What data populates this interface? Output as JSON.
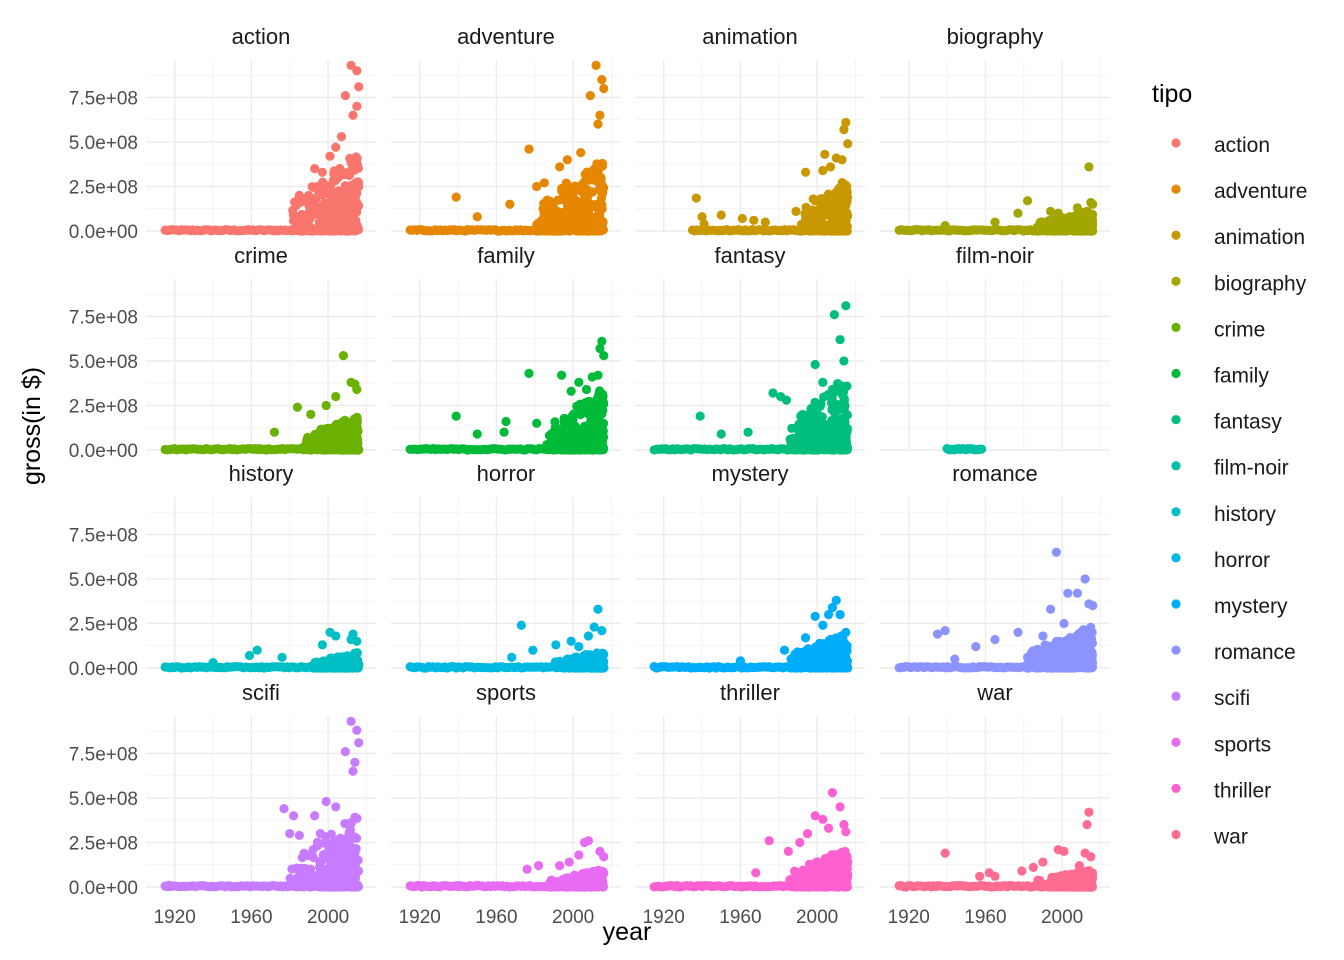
{
  "chart_data": {
    "type": "scatter",
    "facet": "genre",
    "xlabel": "year",
    "ylabel": "gross(in $)",
    "xlim": [
      1905,
      2025
    ],
    "ylim": [
      0,
      960000000
    ],
    "x_ticks": [
      1920,
      1960,
      2000
    ],
    "y_ticks": [
      {
        "value": 0,
        "label": "0.0e+00"
      },
      {
        "value": 250000000,
        "label": "2.5e+08"
      },
      {
        "value": 500000000,
        "label": "5.0e+08"
      },
      {
        "value": 750000000,
        "label": "7.5e+08"
      }
    ],
    "grid": true,
    "legend": {
      "title": "tipo",
      "position": "right"
    },
    "panels": [
      {
        "name": "action",
        "color": "#F8766D",
        "x_range": [
          1915,
          2016
        ],
        "dense_start": 1980,
        "dense_max": 450000000,
        "points": [
          [
            1993,
            350000000
          ],
          [
            1997,
            330000000
          ],
          [
            2001,
            420000000
          ],
          [
            2004,
            470000000
          ],
          [
            2007,
            530000000
          ],
          [
            2009,
            760000000
          ],
          [
            2012,
            930000000
          ],
          [
            2013,
            650000000
          ],
          [
            2015,
            900000000
          ],
          [
            2015,
            700000000
          ],
          [
            2016,
            810000000
          ],
          [
            1985,
            200000000
          ]
        ]
      },
      {
        "name": "adventure",
        "color": "#E58700",
        "x_range": [
          1915,
          2016
        ],
        "dense_start": 1980,
        "dense_max": 420000000,
        "points": [
          [
            1939,
            190000000
          ],
          [
            1950,
            80000000
          ],
          [
            1967,
            150000000
          ],
          [
            1977,
            460000000
          ],
          [
            1981,
            250000000
          ],
          [
            1985,
            270000000
          ],
          [
            1993,
            360000000
          ],
          [
            1997,
            400000000
          ],
          [
            2004,
            440000000
          ],
          [
            2009,
            760000000
          ],
          [
            2012,
            930000000
          ],
          [
            2013,
            600000000
          ],
          [
            2014,
            650000000
          ],
          [
            2015,
            850000000
          ],
          [
            2016,
            800000000
          ]
        ]
      },
      {
        "name": "animation",
        "color": "#C99800",
        "x_range": [
          1935,
          2016
        ],
        "dense_start": 1990,
        "dense_max": 300000000,
        "points": [
          [
            1937,
            185000000
          ],
          [
            1940,
            80000000
          ],
          [
            1941,
            40000000
          ],
          [
            1950,
            90000000
          ],
          [
            1961,
            70000000
          ],
          [
            1967,
            60000000
          ],
          [
            1973,
            50000000
          ],
          [
            1989,
            110000000
          ],
          [
            1994,
            330000000
          ],
          [
            1998,
            180000000
          ],
          [
            2003,
            340000000
          ],
          [
            2004,
            430000000
          ],
          [
            2007,
            360000000
          ],
          [
            2010,
            410000000
          ],
          [
            2013,
            400000000
          ],
          [
            2014,
            570000000
          ],
          [
            2015,
            610000000
          ],
          [
            2016,
            490000000
          ]
        ]
      },
      {
        "name": "biography",
        "color": "#A3A500",
        "x_range": [
          1915,
          2016
        ],
        "dense_start": 1985,
        "dense_max": 120000000,
        "points": [
          [
            1939,
            30000000
          ],
          [
            1965,
            50000000
          ],
          [
            1977,
            100000000
          ],
          [
            1982,
            170000000
          ],
          [
            1994,
            110000000
          ],
          [
            1998,
            100000000
          ],
          [
            2008,
            130000000
          ],
          [
            2014,
            360000000
          ],
          [
            2015,
            160000000
          ],
          [
            2016,
            150000000
          ]
        ]
      },
      {
        "name": "crime",
        "color": "#6BB100",
        "x_range": [
          1915,
          2016
        ],
        "dense_start": 1985,
        "dense_max": 200000000,
        "points": [
          [
            1972,
            100000000
          ],
          [
            1984,
            240000000
          ],
          [
            1991,
            200000000
          ],
          [
            1999,
            250000000
          ],
          [
            2004,
            300000000
          ],
          [
            2008,
            530000000
          ],
          [
            2012,
            380000000
          ],
          [
            2014,
            370000000
          ],
          [
            2015,
            340000000
          ]
        ]
      },
      {
        "name": "family",
        "color": "#00BA38",
        "x_range": [
          1915,
          2016
        ],
        "dense_start": 1985,
        "dense_max": 350000000,
        "points": [
          [
            1939,
            190000000
          ],
          [
            1950,
            90000000
          ],
          [
            1964,
            100000000
          ],
          [
            1965,
            160000000
          ],
          [
            1977,
            430000000
          ],
          [
            1981,
            150000000
          ],
          [
            1994,
            420000000
          ],
          [
            1999,
            330000000
          ],
          [
            2003,
            380000000
          ],
          [
            2007,
            340000000
          ],
          [
            2010,
            410000000
          ],
          [
            2013,
            420000000
          ],
          [
            2014,
            570000000
          ],
          [
            2015,
            610000000
          ],
          [
            2016,
            530000000
          ]
        ]
      },
      {
        "name": "fantasy",
        "color": "#00BF7D",
        "x_range": [
          1915,
          2016
        ],
        "dense_start": 1985,
        "dense_max": 420000000,
        "points": [
          [
            1939,
            190000000
          ],
          [
            1950,
            90000000
          ],
          [
            1964,
            100000000
          ],
          [
            1977,
            320000000
          ],
          [
            1981,
            300000000
          ],
          [
            1984,
            280000000
          ],
          [
            1999,
            480000000
          ],
          [
            2003,
            380000000
          ],
          [
            2009,
            760000000
          ],
          [
            2012,
            620000000
          ],
          [
            2014,
            500000000
          ],
          [
            2015,
            810000000
          ]
        ]
      },
      {
        "name": "film-noir",
        "color": "#00C1A3",
        "x_range": [
          1940,
          1958
        ],
        "dense_start": 1965,
        "dense_max": 0,
        "points": [
          [
            1941,
            4000000
          ],
          [
            1944,
            2000000
          ],
          [
            1946,
            8000000
          ],
          [
            1947,
            4000000
          ],
          [
            1949,
            6000000
          ],
          [
            1950,
            3000000
          ],
          [
            1951,
            5000000
          ],
          [
            1953,
            7000000
          ],
          [
            1955,
            3000000
          ],
          [
            1958,
            5000000
          ]
        ]
      },
      {
        "name": "history",
        "color": "#00BFC4",
        "x_range": [
          1915,
          2016
        ],
        "dense_start": 1990,
        "dense_max": 90000000,
        "points": [
          [
            1940,
            30000000
          ],
          [
            1959,
            70000000
          ],
          [
            1963,
            100000000
          ],
          [
            1976,
            60000000
          ],
          [
            1997,
            130000000
          ],
          [
            2001,
            200000000
          ],
          [
            2004,
            180000000
          ],
          [
            2012,
            160000000
          ],
          [
            2013,
            190000000
          ],
          [
            2015,
            150000000
          ]
        ]
      },
      {
        "name": "horror",
        "color": "#00B9E3",
        "x_range": [
          1915,
          2016
        ],
        "dense_start": 1990,
        "dense_max": 100000000,
        "points": [
          [
            1968,
            60000000
          ],
          [
            1973,
            240000000
          ],
          [
            1979,
            100000000
          ],
          [
            1991,
            130000000
          ],
          [
            1999,
            150000000
          ],
          [
            2003,
            120000000
          ],
          [
            2008,
            180000000
          ],
          [
            2011,
            230000000
          ],
          [
            2013,
            330000000
          ],
          [
            2015,
            210000000
          ]
        ]
      },
      {
        "name": "mystery",
        "color": "#00ADFA",
        "x_range": [
          1915,
          2016
        ],
        "dense_start": 1985,
        "dense_max": 200000000,
        "points": [
          [
            1960,
            40000000
          ],
          [
            1983,
            100000000
          ],
          [
            1994,
            170000000
          ],
          [
            1999,
            290000000
          ],
          [
            2003,
            240000000
          ],
          [
            2006,
            300000000
          ],
          [
            2008,
            340000000
          ],
          [
            2010,
            380000000
          ],
          [
            2012,
            300000000
          ],
          [
            2015,
            200000000
          ]
        ]
      },
      {
        "name": "romance",
        "color": "#8B93FF",
        "x_range": [
          1915,
          2016
        ],
        "dense_start": 1980,
        "dense_max": 240000000,
        "points": [
          [
            1935,
            190000000
          ],
          [
            1939,
            210000000
          ],
          [
            1944,
            50000000
          ],
          [
            1955,
            120000000
          ],
          [
            1965,
            160000000
          ],
          [
            1977,
            200000000
          ],
          [
            1990,
            180000000
          ],
          [
            1994,
            330000000
          ],
          [
            1997,
            650000000
          ],
          [
            2001,
            250000000
          ],
          [
            2003,
            420000000
          ],
          [
            2008,
            420000000
          ],
          [
            2012,
            500000000
          ],
          [
            2014,
            360000000
          ],
          [
            2016,
            350000000
          ]
        ]
      },
      {
        "name": "scifi",
        "color": "#C77CFF",
        "x_range": [
          1915,
          2016
        ],
        "dense_start": 1980,
        "dense_max": 420000000,
        "points": [
          [
            1917,
            10000000
          ],
          [
            1977,
            440000000
          ],
          [
            1980,
            300000000
          ],
          [
            1982,
            400000000
          ],
          [
            1985,
            290000000
          ],
          [
            1993,
            400000000
          ],
          [
            1996,
            300000000
          ],
          [
            1999,
            480000000
          ],
          [
            2004,
            450000000
          ],
          [
            2009,
            760000000
          ],
          [
            2012,
            930000000
          ],
          [
            2013,
            650000000
          ],
          [
            2014,
            700000000
          ],
          [
            2015,
            880000000
          ],
          [
            2016,
            810000000
          ]
        ]
      },
      {
        "name": "sports",
        "color": "#E76BF3",
        "x_range": [
          1915,
          2016
        ],
        "dense_start": 1985,
        "dense_max": 100000000,
        "points": [
          [
            1927,
            5000000
          ],
          [
            1940,
            8000000
          ],
          [
            1950,
            10000000
          ],
          [
            1976,
            100000000
          ],
          [
            1982,
            120000000
          ],
          [
            1993,
            120000000
          ],
          [
            1998,
            140000000
          ],
          [
            2003,
            180000000
          ],
          [
            2006,
            250000000
          ],
          [
            2008,
            260000000
          ],
          [
            2014,
            200000000
          ],
          [
            2016,
            170000000
          ]
        ]
      },
      {
        "name": "thriller",
        "color": "#FD61D1",
        "x_range": [
          1915,
          2016
        ],
        "dense_start": 1985,
        "dense_max": 220000000,
        "points": [
          [
            1968,
            80000000
          ],
          [
            1975,
            260000000
          ],
          [
            1985,
            200000000
          ],
          [
            1991,
            250000000
          ],
          [
            1995,
            300000000
          ],
          [
            1999,
            400000000
          ],
          [
            2003,
            380000000
          ],
          [
            2006,
            330000000
          ],
          [
            2008,
            530000000
          ],
          [
            2012,
            450000000
          ],
          [
            2014,
            350000000
          ],
          [
            2015,
            310000000
          ]
        ]
      },
      {
        "name": "war",
        "color": "#FF6C91",
        "x_range": [
          1915,
          2016
        ],
        "dense_start": 1985,
        "dense_max": 100000000,
        "points": [
          [
            1939,
            190000000
          ],
          [
            1957,
            60000000
          ],
          [
            1962,
            80000000
          ],
          [
            1965,
            60000000
          ],
          [
            1979,
            90000000
          ],
          [
            1985,
            110000000
          ],
          [
            1990,
            140000000
          ],
          [
            1998,
            210000000
          ],
          [
            2001,
            200000000
          ],
          [
            2009,
            120000000
          ],
          [
            2012,
            190000000
          ],
          [
            2013,
            350000000
          ],
          [
            2014,
            420000000
          ],
          [
            2015,
            170000000
          ]
        ]
      }
    ]
  }
}
